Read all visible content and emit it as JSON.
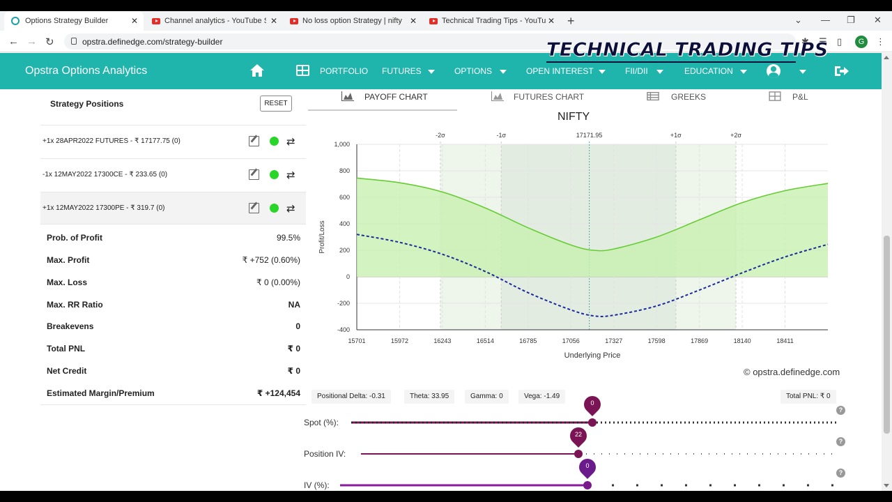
{
  "browser": {
    "tabs": [
      {
        "title": "Options Strategy Builder",
        "active": true
      },
      {
        "title": "Channel analytics - YouTube Stu"
      },
      {
        "title": "No loss option Strategy | nifty op"
      },
      {
        "title": "Technical Trading Tips - YouTube"
      }
    ],
    "url": "opstra.definedge.com/strategy-builder",
    "profile_initial": "G"
  },
  "watermark": "TECHNICAL TRADING TIPS",
  "navbar": {
    "brand": "Opstra Options Analytics",
    "items": [
      "PORTFOLIO",
      "FUTURES",
      "OPTIONS",
      "OPEN INTEREST",
      "FII/DII",
      "EDUCATION"
    ]
  },
  "positions_panel": {
    "title": "Strategy Positions",
    "reset_label": "RESET",
    "positions": [
      "+1x  28APR2022  FUTURES  - ₹ 17177.75   (0)",
      "-1x  12MAY2022  17300CE  - ₹ 233.65   (0)",
      "+1x  12MAY2022  17300PE  - ₹ 319.7   (0)"
    ],
    "stats": [
      {
        "label": "Prob. of Profit",
        "value": "99.5%"
      },
      {
        "label": "Max. Profit",
        "value": "₹ +752 (0.60%)"
      },
      {
        "label": "Max. Loss",
        "value": "₹ 0 (0.00%)"
      },
      {
        "label": "Max. RR Ratio",
        "value": "NA"
      },
      {
        "label": "Breakevens",
        "value": "0"
      },
      {
        "label": "Total PNL",
        "value": "₹ 0"
      },
      {
        "label": "Net Credit",
        "value": "₹ 0"
      },
      {
        "label": "Estimated Margin/Premium",
        "value": "₹ +124,454"
      }
    ]
  },
  "chart_tabs": [
    "PAYOFF CHART",
    "FUTURES CHART",
    "GREEKS",
    "P&L"
  ],
  "chart_data": {
    "type": "line",
    "title": "NIFTY",
    "xlabel": "Underlying Price",
    "ylabel": "Profit/Loss",
    "x_ticks": [
      "15701",
      "15972",
      "16243",
      "16514",
      "16785",
      "17056",
      "17327",
      "17598",
      "17869",
      "18140",
      "18411"
    ],
    "y_ticks": [
      "1,000",
      "800",
      "600",
      "400",
      "200",
      "0",
      "-200",
      "-400"
    ],
    "xlim": [
      15701,
      18682
    ],
    "ylim": [
      -400,
      1000
    ],
    "sigma_labels": [
      "-2σ",
      "-1σ",
      "17171.95",
      "+1σ",
      "+2σ"
    ],
    "sigma_values": [
      16230,
      16615,
      17172,
      17720,
      18100
    ],
    "spot": 17171.95,
    "series": [
      {
        "style": "solid-green-filled",
        "x": [
          15701,
          15972,
          16243,
          16514,
          16785,
          17056,
          17200,
          17327,
          17598,
          17869,
          18140,
          18411,
          18682
        ],
        "values": [
          745,
          710,
          640,
          520,
          370,
          240,
          200,
          210,
          300,
          430,
          560,
          650,
          705
        ]
      },
      {
        "style": "dashed-blue",
        "x": [
          15701,
          15972,
          16243,
          16514,
          16785,
          17056,
          17200,
          17327,
          17598,
          17869,
          18140,
          18411,
          18682
        ],
        "values": [
          320,
          260,
          170,
          40,
          -120,
          -250,
          -295,
          -290,
          -220,
          -100,
          30,
          150,
          245
        ]
      }
    ]
  },
  "copyright": "© opstra.definedge.com",
  "greeks": {
    "delta": "Positional Delta: -0.31",
    "theta": "Theta: 33.95",
    "gamma": "Gamma: 0",
    "vega": "Vega: -1.49",
    "total_pnl": "Total PNL: ₹ 0"
  },
  "sliders": [
    {
      "label": "Spot (%):",
      "value": "0"
    },
    {
      "label": "Position IV:",
      "value": "22"
    },
    {
      "label": "IV (%):",
      "value": "0"
    }
  ],
  "colors": {
    "navbar": "#1fb4ac",
    "profit_line": "#66cc33",
    "profit_fill": "#c8f0b0",
    "dashed_line": "#1a2a9a",
    "slider_pin": "#7a1454"
  }
}
